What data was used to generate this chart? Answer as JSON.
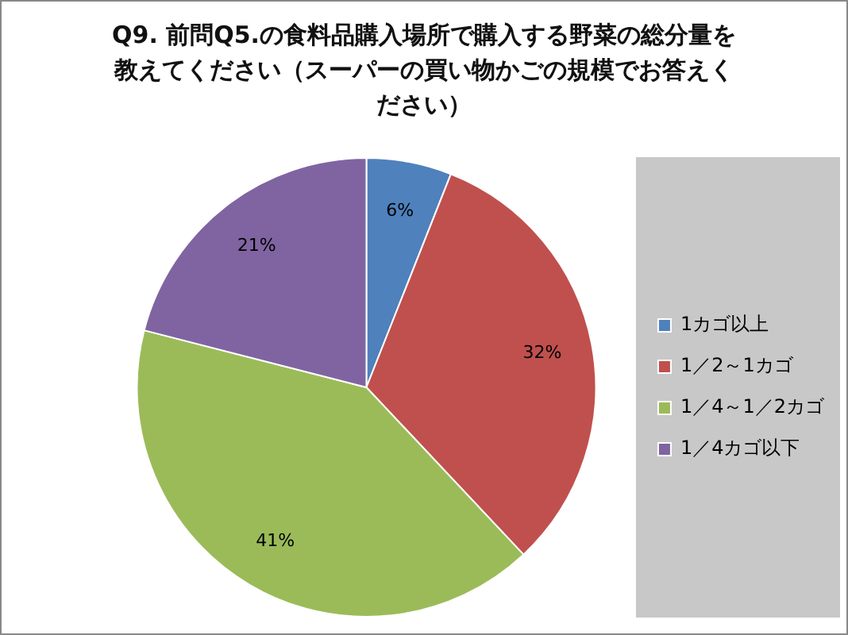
{
  "chart_data": {
    "type": "pie",
    "title": "Q9. 前問Q5.の食料品購入場所で購入する野菜の総分量を教えてください（スーパーの買い物かごの規模でお答えください）",
    "categories": [
      "1カゴ以上",
      "1／2～1カゴ",
      "1／4～1／2カゴ",
      "1／4カゴ以下"
    ],
    "values": [
      6,
      32,
      41,
      21
    ],
    "colors": [
      "#4f81bd",
      "#c0504d",
      "#9bbb59",
      "#8064a2"
    ],
    "value_labels": [
      "6%",
      "32%",
      "41%",
      "21%"
    ],
    "legend": "right"
  }
}
